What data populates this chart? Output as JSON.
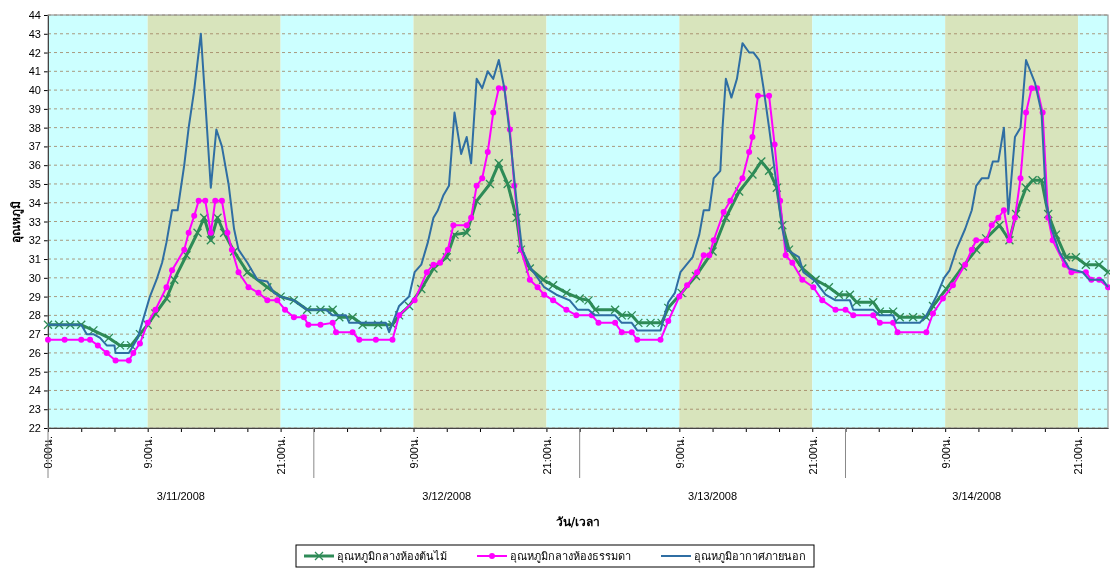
{
  "chart_data": {
    "type": "line",
    "xlabel": "วัน/เวลา",
    "ylabel": "อุณหภูมิ",
    "xlim": [
      "2008-03-11T00:00",
      "2008-03-14T23:42"
    ],
    "ylim": [
      22,
      44
    ],
    "yticks": [
      22,
      23,
      24,
      25,
      26,
      27,
      28,
      29,
      30,
      31,
      32,
      33,
      34,
      35,
      36,
      37,
      38,
      39,
      40,
      41,
      42,
      43,
      44
    ],
    "xticks": [
      {
        "value": "2008-03-11T00:00",
        "label": "0:00น."
      },
      {
        "value": "2008-03-11T03:00",
        "label": null
      },
      {
        "value": "2008-03-11T06:00",
        "label": null
      },
      {
        "value": "2008-03-11T09:00",
        "label": "9:00น."
      },
      {
        "value": "2008-03-11T12:00",
        "label": null
      },
      {
        "value": "2008-03-11T15:00",
        "label": null
      },
      {
        "value": "2008-03-11T18:00",
        "label": null
      },
      {
        "value": "2008-03-11T21:00",
        "label": "21:00น."
      },
      {
        "value": "2008-03-12T00:00",
        "label": null
      },
      {
        "value": "2008-03-12T03:00",
        "label": null
      },
      {
        "value": "2008-03-12T06:00",
        "label": null
      },
      {
        "value": "2008-03-12T09:00",
        "label": "9:00น."
      },
      {
        "value": "2008-03-12T12:00",
        "label": null
      },
      {
        "value": "2008-03-12T15:00",
        "label": null
      },
      {
        "value": "2008-03-12T18:00",
        "label": null
      },
      {
        "value": "2008-03-12T21:00",
        "label": "21:00น."
      },
      {
        "value": "2008-03-13T00:00",
        "label": null
      },
      {
        "value": "2008-03-13T03:00",
        "label": null
      },
      {
        "value": "2008-03-13T06:00",
        "label": null
      },
      {
        "value": "2008-03-13T09:00",
        "label": "9:00น."
      },
      {
        "value": "2008-03-13T12:00",
        "label": null
      },
      {
        "value": "2008-03-13T15:00",
        "label": null
      },
      {
        "value": "2008-03-13T18:00",
        "label": null
      },
      {
        "value": "2008-03-13T21:00",
        "label": "21:00น."
      },
      {
        "value": "2008-03-14T00:00",
        "label": null
      },
      {
        "value": "2008-03-14T03:00",
        "label": null
      },
      {
        "value": "2008-03-14T06:00",
        "label": null
      },
      {
        "value": "2008-03-14T09:00",
        "label": "9:00น."
      },
      {
        "value": "2008-03-14T12:00",
        "label": null
      },
      {
        "value": "2008-03-14T15:00",
        "label": null
      },
      {
        "value": "2008-03-14T18:00",
        "label": null
      },
      {
        "value": "2008-03-14T21:00",
        "label": "21:00น."
      }
    ],
    "grid": "y",
    "legend": "bottom",
    "annotations": [
      "3/11/2008",
      "3/12/2008",
      "3/13/2008",
      "3/14/2008"
    ],
    "bands": [
      {
        "axis": "x",
        "from": "2008-03-11T00:00",
        "to": "2008-03-11T09:00",
        "color": "#ccffff"
      },
      {
        "axis": "x",
        "from": "2008-03-11T09:00",
        "to": "2008-03-11T21:00",
        "color": "#d8e4bc"
      },
      {
        "axis": "x",
        "from": "2008-03-11T21:00",
        "to": "2008-03-12T09:00",
        "color": "#ccffff"
      },
      {
        "axis": "x",
        "from": "2008-03-12T09:00",
        "to": "2008-03-12T21:00",
        "color": "#d8e4bc"
      },
      {
        "axis": "x",
        "from": "2008-03-12T21:00",
        "to": "2008-03-13T09:00",
        "color": "#ccffff"
      },
      {
        "axis": "x",
        "from": "2008-03-13T09:00",
        "to": "2008-03-13T21:00",
        "color": "#d8e4bc"
      },
      {
        "axis": "x",
        "from": "2008-03-13T21:00",
        "to": "2008-03-14T09:00",
        "color": "#ccffff"
      },
      {
        "axis": "x",
        "from": "2008-03-14T09:00",
        "to": "2008-03-14T21:00",
        "color": "#d8e4bc"
      },
      {
        "axis": "x",
        "from": "2008-03-14T21:00",
        "to": "2008-03-14T23:42",
        "color": "#ccffff"
      }
    ],
    "series": [
      {
        "name": "อุณหภูมิอากาศภายนอก",
        "color": "#2f6ea3",
        "marker": "none",
        "x": [
          "2008-03-11T00:00",
          "2008-03-11T03:00",
          "2008-03-11T03:30",
          "2008-03-11T04:06",
          "2008-03-11T04:42",
          "2008-03-11T05:18",
          "2008-03-11T06:00",
          "2008-03-11T06:06",
          "2008-03-11T07:18",
          "2008-03-11T08:06",
          "2008-03-11T08:36",
          "2008-03-11T09:12",
          "2008-03-11T09:48",
          "2008-03-11T10:18",
          "2008-03-11T10:42",
          "2008-03-11T11:12",
          "2008-03-11T11:42",
          "2008-03-11T12:18",
          "2008-03-11T12:42",
          "2008-03-11T13:12",
          "2008-03-11T13:48",
          "2008-03-11T14:12",
          "2008-03-11T14:42",
          "2008-03-11T15:12",
          "2008-03-11T15:42",
          "2008-03-11T16:18",
          "2008-03-11T16:48",
          "2008-03-11T17:12",
          "2008-03-11T18:00",
          "2008-03-11T18:54",
          "2008-03-11T19:48",
          "2008-03-11T20:24",
          "2008-03-11T21:00",
          "2008-03-11T22:12",
          "2008-03-11T23:24",
          "2008-03-12T00:36",
          "2008-03-12T01:06",
          "2008-03-12T01:42",
          "2008-03-12T02:54",
          "2008-03-12T03:12",
          "2008-03-12T06:30",
          "2008-03-12T06:48",
          "2008-03-12T07:42",
          "2008-03-12T08:36",
          "2008-03-12T09:06",
          "2008-03-12T09:42",
          "2008-03-12T10:18",
          "2008-03-12T10:48",
          "2008-03-12T11:12",
          "2008-03-12T11:42",
          "2008-03-12T12:12",
          "2008-03-12T12:42",
          "2008-03-12T13:18",
          "2008-03-12T13:48",
          "2008-03-12T14:12",
          "2008-03-12T14:42",
          "2008-03-12T15:12",
          "2008-03-12T15:42",
          "2008-03-12T16:12",
          "2008-03-12T16:42",
          "2008-03-12T17:12",
          "2008-03-12T17:42",
          "2008-03-12T18:18",
          "2008-03-12T18:48",
          "2008-03-12T19:36",
          "2008-03-12T20:48",
          "2008-03-12T21:54",
          "2008-03-12T23:06",
          "2008-03-12T23:48",
          "2008-03-13T00:48",
          "2008-03-13T01:24",
          "2008-03-13T03:12",
          "2008-03-13T03:48",
          "2008-03-13T04:42",
          "2008-03-13T05:12",
          "2008-03-13T07:18",
          "2008-03-13T08:00",
          "2008-03-13T08:36",
          "2008-03-13T09:06",
          "2008-03-13T10:12",
          "2008-03-13T10:48",
          "2008-03-13T11:12",
          "2008-03-13T11:42",
          "2008-03-13T12:06",
          "2008-03-13T12:42",
          "2008-03-13T12:54",
          "2008-03-13T13:12",
          "2008-03-13T13:42",
          "2008-03-13T14:12",
          "2008-03-13T14:42",
          "2008-03-13T15:18",
          "2008-03-13T15:42",
          "2008-03-13T16:12",
          "2008-03-13T16:36",
          "2008-03-13T17:06",
          "2008-03-13T17:42",
          "2008-03-13T18:18",
          "2008-03-13T18:42",
          "2008-03-13T19:48",
          "2008-03-13T20:12",
          "2008-03-13T21:18",
          "2008-03-13T22:12",
          "2008-03-13T23:06",
          "2008-03-14T00:24",
          "2008-03-14T00:42",
          "2008-03-14T02:30",
          "2008-03-14T03:06",
          "2008-03-14T04:18",
          "2008-03-14T04:36",
          "2008-03-14T06:42",
          "2008-03-14T07:18",
          "2008-03-14T08:12",
          "2008-03-14T08:54",
          "2008-03-14T09:24",
          "2008-03-14T10:00",
          "2008-03-14T10:48",
          "2008-03-14T11:24",
          "2008-03-14T11:48",
          "2008-03-14T12:18",
          "2008-03-14T12:54",
          "2008-03-14T13:18",
          "2008-03-14T13:48",
          "2008-03-14T14:18",
          "2008-03-14T14:42",
          "2008-03-14T15:18",
          "2008-03-14T15:48",
          "2008-03-14T16:18",
          "2008-03-14T17:06",
          "2008-03-14T17:42",
          "2008-03-14T18:06",
          "2008-03-14T18:36",
          "2008-03-14T19:18",
          "2008-03-14T20:12",
          "2008-03-14T21:24",
          "2008-03-14T22:00",
          "2008-03-14T23:12",
          "2008-03-14T23:42"
        ],
        "values": [
          27.5,
          27.5,
          27.0,
          27.0,
          26.8,
          26.4,
          26.4,
          26.0,
          26.0,
          26.8,
          27.8,
          29.0,
          29.9,
          30.8,
          31.9,
          33.6,
          33.6,
          36.0,
          38.0,
          40.0,
          43.0,
          39.4,
          34.8,
          37.9,
          37.0,
          35.0,
          32.6,
          31.5,
          30.8,
          29.9,
          29.8,
          29.2,
          29.0,
          28.8,
          28.3,
          28.3,
          28.3,
          28.0,
          28.0,
          27.6,
          27.6,
          27.1,
          28.5,
          29.0,
          30.3,
          30.7,
          31.9,
          33.2,
          33.6,
          34.4,
          34.9,
          38.8,
          36.6,
          37.5,
          36.1,
          40.6,
          40.1,
          41.0,
          40.6,
          41.6,
          40.1,
          37.6,
          34.1,
          31.5,
          30.5,
          29.5,
          29.1,
          28.8,
          28.3,
          28.3,
          28.0,
          28.0,
          27.6,
          27.6,
          27.2,
          27.2,
          28.7,
          29.2,
          30.3,
          31.1,
          32.3,
          33.6,
          33.6,
          35.3,
          35.7,
          38.0,
          40.6,
          39.6,
          40.6,
          42.5,
          42.0,
          42.0,
          41.6,
          40.1,
          38.0,
          35.3,
          32.6,
          31.5,
          31.1,
          30.3,
          29.8,
          29.1,
          28.8,
          28.8,
          28.3,
          28.3,
          28.0,
          28.0,
          27.6,
          27.6,
          28.0,
          29.0,
          30.0,
          30.4,
          31.5,
          32.6,
          33.6,
          34.9,
          35.3,
          35.3,
          36.2,
          36.2,
          38.0,
          33.4,
          37.5,
          38.0,
          41.6,
          40.4,
          38.8,
          34.1,
          32.6,
          31.4,
          30.5,
          30.3,
          29.9,
          29.9,
          29.5
        ]
      },
      {
        "name": "อุณหภูมิกลางห้องธรรมดา",
        "color": "#ff00ff",
        "marker": "circle",
        "x": [
          "2008-03-11T00:00",
          "2008-03-11T01:30",
          "2008-03-11T03:00",
          "2008-03-11T03:48",
          "2008-03-11T04:30",
          "2008-03-11T05:18",
          "2008-03-11T06:06",
          "2008-03-11T07:18",
          "2008-03-11T07:42",
          "2008-03-11T08:18",
          "2008-03-11T09:00",
          "2008-03-11T09:42",
          "2008-03-11T10:42",
          "2008-03-11T11:12",
          "2008-03-11T12:18",
          "2008-03-11T12:42",
          "2008-03-11T13:12",
          "2008-03-11T13:36",
          "2008-03-11T14:12",
          "2008-03-11T14:42",
          "2008-03-11T15:06",
          "2008-03-11T15:42",
          "2008-03-11T16:12",
          "2008-03-11T16:36",
          "2008-03-11T17:12",
          "2008-03-11T18:06",
          "2008-03-11T19:00",
          "2008-03-11T19:48",
          "2008-03-11T20:42",
          "2008-03-11T21:24",
          "2008-03-11T22:12",
          "2008-03-11T23:06",
          "2008-03-11T23:30",
          "2008-03-12T00:36",
          "2008-03-12T01:42",
          "2008-03-12T02:00",
          "2008-03-12T03:30",
          "2008-03-12T04:06",
          "2008-03-12T05:36",
          "2008-03-12T07:06",
          "2008-03-12T07:42",
          "2008-03-12T09:06",
          "2008-03-12T10:12",
          "2008-03-12T10:48",
          "2008-03-12T11:24",
          "2008-03-12T12:06",
          "2008-03-12T12:36",
          "2008-03-12T13:48",
          "2008-03-12T14:12",
          "2008-03-12T14:42",
          "2008-03-12T15:12",
          "2008-03-12T15:42",
          "2008-03-12T16:12",
          "2008-03-12T16:42",
          "2008-03-12T17:12",
          "2008-03-12T17:42",
          "2008-03-12T18:06",
          "2008-03-12T18:42",
          "2008-03-12T19:30",
          "2008-03-12T20:12",
          "2008-03-12T20:48",
          "2008-03-12T21:36",
          "2008-03-12T22:48",
          "2008-03-12T23:42",
          "2008-03-13T01:06",
          "2008-03-13T01:42",
          "2008-03-13T03:12",
          "2008-03-13T03:48",
          "2008-03-13T04:42",
          "2008-03-13T05:12",
          "2008-03-13T07:18",
          "2008-03-13T08:00",
          "2008-03-13T09:00",
          "2008-03-13T09:42",
          "2008-03-13T10:36",
          "2008-03-13T11:12",
          "2008-03-13T11:42",
          "2008-03-13T12:06",
          "2008-03-13T13:00",
          "2008-03-13T13:36",
          "2008-03-13T14:42",
          "2008-03-13T15:18",
          "2008-03-13T15:36",
          "2008-03-13T16:06",
          "2008-03-13T17:06",
          "2008-03-13T17:36",
          "2008-03-13T18:06",
          "2008-03-13T18:36",
          "2008-03-13T19:12",
          "2008-03-13T20:06",
          "2008-03-13T21:06",
          "2008-03-13T21:54",
          "2008-03-13T23:06",
          "2008-03-14T00:00",
          "2008-03-14T00:42",
          "2008-03-14T02:30",
          "2008-03-14T03:06",
          "2008-03-14T04:18",
          "2008-03-14T04:42",
          "2008-03-14T07:18",
          "2008-03-14T07:54",
          "2008-03-14T08:48",
          "2008-03-14T09:42",
          "2008-03-14T10:48",
          "2008-03-14T11:24",
          "2008-03-14T11:48",
          "2008-03-14T12:42",
          "2008-03-14T13:12",
          "2008-03-14T13:48",
          "2008-03-14T14:18",
          "2008-03-14T14:48",
          "2008-03-14T15:18",
          "2008-03-14T15:48",
          "2008-03-14T16:18",
          "2008-03-14T16:48",
          "2008-03-14T17:18",
          "2008-03-14T17:48",
          "2008-03-14T18:18",
          "2008-03-14T18:42",
          "2008-03-14T19:48",
          "2008-03-14T20:24",
          "2008-03-14T21:42",
          "2008-03-14T22:12",
          "2008-03-14T22:54",
          "2008-03-14T23:42"
        ],
        "values": [
          26.7,
          26.7,
          26.7,
          26.7,
          26.4,
          26.0,
          25.6,
          25.6,
          26.0,
          26.5,
          27.6,
          28.3,
          29.5,
          30.4,
          31.5,
          32.4,
          33.3,
          34.1,
          34.1,
          32.4,
          34.1,
          34.1,
          32.4,
          31.5,
          30.3,
          29.5,
          29.2,
          28.8,
          28.8,
          28.3,
          27.9,
          27.9,
          27.5,
          27.5,
          27.6,
          27.1,
          27.1,
          26.7,
          26.7,
          26.7,
          28.0,
          28.8,
          30.3,
          30.7,
          30.8,
          31.5,
          32.8,
          32.8,
          33.2,
          34.9,
          35.3,
          36.7,
          38.8,
          40.1,
          40.1,
          37.9,
          34.9,
          31.5,
          29.9,
          29.5,
          29.1,
          28.8,
          28.3,
          28.0,
          28.0,
          27.6,
          27.6,
          27.1,
          27.1,
          26.7,
          26.7,
          27.7,
          29.0,
          29.6,
          30.3,
          31.2,
          31.2,
          32.0,
          33.5,
          34.1,
          35.3,
          36.7,
          37.5,
          39.7,
          39.7,
          37.1,
          34.1,
          31.2,
          30.8,
          29.9,
          29.5,
          28.8,
          28.3,
          28.3,
          28.0,
          28.0,
          27.6,
          27.6,
          27.1,
          27.1,
          28.1,
          28.9,
          29.6,
          30.7,
          31.5,
          32.0,
          32.0,
          32.8,
          33.2,
          33.6,
          32.0,
          33.2,
          35.3,
          38.8,
          40.1,
          40.1,
          38.8,
          33.2,
          32.0,
          30.7,
          30.3,
          30.3,
          29.9,
          29.9,
          29.5
        ]
      },
      {
        "name": "อุณหภูมิกลางห้องต้นไม้",
        "color": "#2e8b57",
        "marker": "cross",
        "x": [
          "2008-03-11T00:00",
          "2008-03-11T01:00",
          "2008-03-11T02:00",
          "2008-03-11T03:00",
          "2008-03-11T04:06",
          "2008-03-11T05:30",
          "2008-03-11T06:30",
          "2008-03-11T07:30",
          "2008-03-11T08:18",
          "2008-03-11T09:00",
          "2008-03-11T09:42",
          "2008-03-11T10:42",
          "2008-03-11T11:24",
          "2008-03-11T12:30",
          "2008-03-11T13:30",
          "2008-03-11T14:06",
          "2008-03-11T14:42",
          "2008-03-11T15:18",
          "2008-03-11T15:54",
          "2008-03-11T16:48",
          "2008-03-11T18:00",
          "2008-03-11T19:48",
          "2008-03-11T21:00",
          "2008-03-11T22:12",
          "2008-03-11T23:24",
          "2008-03-12T00:36",
          "2008-03-12T01:42",
          "2008-03-12T02:18",
          "2008-03-12T03:30",
          "2008-03-12T04:24",
          "2008-03-12T05:48",
          "2008-03-12T07:06",
          "2008-03-12T07:42",
          "2008-03-12T08:36",
          "2008-03-12T09:42",
          "2008-03-12T10:48",
          "2008-03-12T12:00",
          "2008-03-12T12:42",
          "2008-03-12T13:48",
          "2008-03-12T14:42",
          "2008-03-12T15:54",
          "2008-03-12T16:42",
          "2008-03-12T17:30",
          "2008-03-12T18:18",
          "2008-03-12T18:42",
          "2008-03-12T19:30",
          "2008-03-12T20:42",
          "2008-03-12T21:36",
          "2008-03-12T22:48",
          "2008-03-13T00:00",
          "2008-03-13T00:48",
          "2008-03-13T01:24",
          "2008-03-13T03:12",
          "2008-03-13T03:48",
          "2008-03-13T04:42",
          "2008-03-13T05:18",
          "2008-03-13T06:24",
          "2008-03-13T07:24",
          "2008-03-13T08:00",
          "2008-03-13T09:12",
          "2008-03-13T10:30",
          "2008-03-13T12:00",
          "2008-03-13T13:12",
          "2008-03-13T14:24",
          "2008-03-13T15:36",
          "2008-03-13T16:24",
          "2008-03-13T17:06",
          "2008-03-13T17:48",
          "2008-03-13T18:18",
          "2008-03-13T18:54",
          "2008-03-13T20:06",
          "2008-03-13T21:18",
          "2008-03-13T22:30",
          "2008-03-13T23:24",
          "2008-03-14T00:24",
          "2008-03-14T01:00",
          "2008-03-14T02:30",
          "2008-03-14T03:06",
          "2008-03-14T04:18",
          "2008-03-14T04:54",
          "2008-03-14T06:06",
          "2008-03-14T07:18",
          "2008-03-14T07:54",
          "2008-03-14T09:06",
          "2008-03-14T10:36",
          "2008-03-14T11:48",
          "2008-03-14T12:42",
          "2008-03-14T13:54",
          "2008-03-14T14:48",
          "2008-03-14T15:24",
          "2008-03-14T16:18",
          "2008-03-14T16:54",
          "2008-03-14T17:42",
          "2008-03-14T18:18",
          "2008-03-14T19:00",
          "2008-03-14T19:54",
          "2008-03-14T20:48",
          "2008-03-14T21:42",
          "2008-03-14T22:54",
          "2008-03-14T23:42"
        ],
        "values": [
          27.5,
          27.5,
          27.5,
          27.5,
          27.2,
          26.8,
          26.4,
          26.4,
          27.0,
          27.5,
          28.1,
          28.9,
          29.9,
          31.2,
          32.4,
          33.2,
          32.0,
          33.2,
          32.4,
          31.4,
          30.3,
          29.5,
          29.0,
          28.8,
          28.3,
          28.3,
          28.3,
          27.9,
          27.9,
          27.5,
          27.5,
          27.5,
          28.0,
          28.5,
          29.4,
          30.5,
          31.1,
          32.3,
          32.4,
          34.1,
          35.0,
          36.1,
          35.0,
          33.2,
          31.5,
          30.5,
          29.9,
          29.6,
          29.2,
          28.9,
          28.8,
          28.3,
          28.3,
          28.0,
          28.0,
          27.6,
          27.6,
          27.6,
          28.4,
          29.2,
          30.1,
          31.4,
          33.2,
          34.6,
          35.5,
          36.2,
          35.7,
          34.8,
          32.8,
          31.5,
          30.5,
          29.9,
          29.5,
          29.1,
          29.1,
          28.7,
          28.7,
          28.2,
          28.2,
          27.9,
          27.9,
          27.9,
          28.5,
          29.4,
          30.6,
          31.5,
          32.1,
          32.8,
          32.0,
          33.4,
          34.8,
          35.2,
          35.2,
          33.4,
          32.3,
          31.1,
          31.1,
          30.7,
          30.7,
          30.3
        ]
      }
    ]
  }
}
